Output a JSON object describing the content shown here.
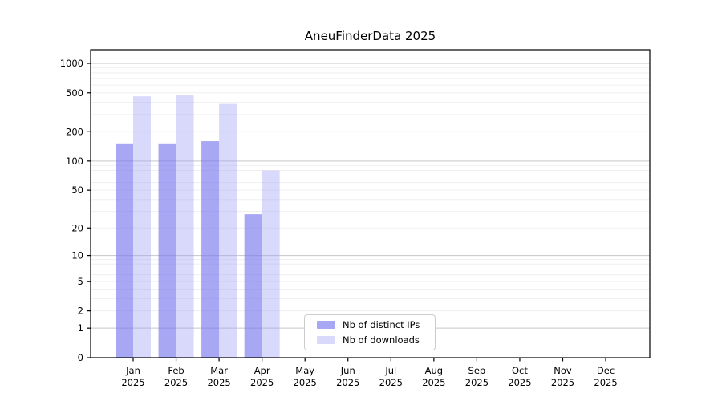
{
  "chart_data": {
    "type": "bar",
    "title": "AneuFinderData 2025",
    "year_label": "2025",
    "categories": [
      "Jan",
      "Feb",
      "Mar",
      "Apr",
      "May",
      "Jun",
      "Jul",
      "Aug",
      "Sep",
      "Oct",
      "Nov",
      "Dec"
    ],
    "series": [
      {
        "name": "Nb of distinct IPs",
        "color": "#7878ee",
        "opacity": 0.65,
        "values": [
          152,
          152,
          160,
          28,
          0,
          0,
          0,
          0,
          0,
          0,
          0,
          0
        ]
      },
      {
        "name": "Nb of downloads",
        "color": "#a0a0f5",
        "opacity": 0.4,
        "values": [
          460,
          470,
          385,
          80,
          0,
          0,
          0,
          0,
          0,
          0,
          0,
          0
        ]
      }
    ],
    "yticks": [
      0,
      1,
      2,
      5,
      10,
      20,
      50,
      100,
      200,
      500,
      1000
    ],
    "ylim": [
      0,
      1000
    ],
    "scale": "log10(1+x)",
    "grid": "horizontal; major lines at 1,10,100,1000; faint minor lines at 2-9 per decade",
    "legend_position": "lower-center inside plot",
    "axis_color": "#000000",
    "major_grid_color": "#c6c6c6",
    "minor_grid_color": "#efefef"
  }
}
